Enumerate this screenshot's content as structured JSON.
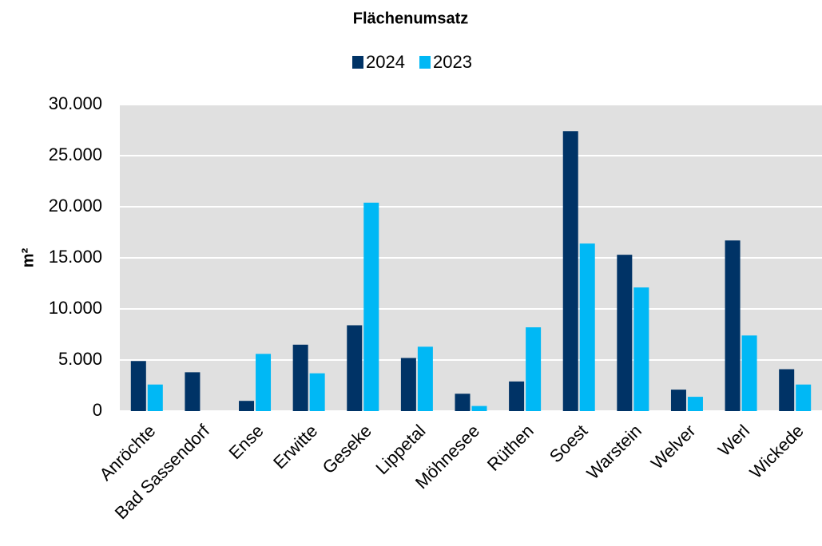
{
  "chart_data": {
    "type": "bar",
    "title": "Flächenumsatz",
    "y_label": "m²",
    "categories": [
      "Anröchte",
      "Bad Sassendorf",
      "Ense",
      "Erwitte",
      "Geseke",
      "Lippetal",
      "Möhnesee",
      "Rüthen",
      "Soest",
      "Warstein",
      "Welver",
      "Werl",
      "Wickede"
    ],
    "series": [
      {
        "name": "2024",
        "color": "#003366",
        "values": [
          4900,
          3800,
          1000,
          6500,
          8400,
          5200,
          1700,
          2900,
          27400,
          15300,
          2100,
          16700,
          4100
        ]
      },
      {
        "name": "2023",
        "color": "#00b8f5",
        "values": [
          2600,
          0,
          5600,
          3700,
          20400,
          6300,
          500,
          8200,
          16400,
          12100,
          1400,
          7400,
          2600
        ]
      }
    ],
    "ylim": [
      0,
      30000
    ],
    "yticks": [
      0,
      {
        "value": 5000,
        "label": "5.000"
      },
      {
        "value": 10000,
        "label": "10.000"
      },
      {
        "value": 15000,
        "label": "15.000"
      },
      {
        "value": 20000,
        "label": "20.000"
      },
      {
        "value": 25000,
        "label": "25.000"
      },
      {
        "value": 30000,
        "label": "30.000"
      }
    ],
    "grid": true,
    "legend": "top"
  }
}
